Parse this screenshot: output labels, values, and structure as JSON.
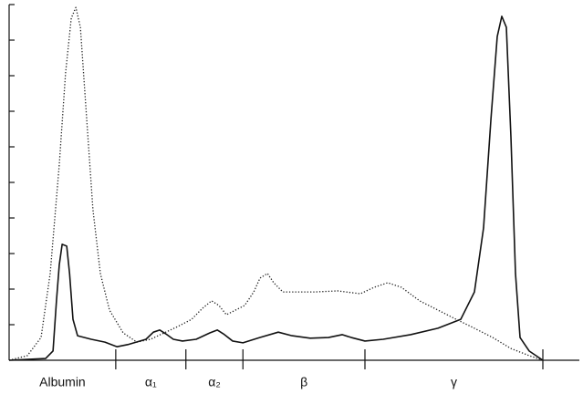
{
  "chart_data": {
    "type": "line",
    "categories": [
      "Albumin",
      "α₁",
      "α₂",
      "β",
      "γ"
    ],
    "xlim": [
      0,
      100
    ],
    "xticks": [
      18.7,
      31.0,
      41.0,
      62.4,
      93.6
    ],
    "ylim": [
      0,
      10
    ],
    "yticks": [
      1,
      2,
      3,
      4,
      5,
      6,
      7,
      8,
      9,
      10
    ],
    "series": [
      {
        "color": "#222222",
        "dash": "dotted",
        "x": [
          0.0,
          3.2,
          5.6,
          7.2,
          8.8,
          9.9,
          10.9,
          11.7,
          12.5,
          13.6,
          14.7,
          16.0,
          17.6,
          20.0,
          22.4,
          24.8,
          27.2,
          29.6,
          32.0,
          33.9,
          35.5,
          36.8,
          38.1,
          39.7,
          41.3,
          42.9,
          44.0,
          45.3,
          46.4,
          48.0,
          50.4,
          53.6,
          57.6,
          61.6,
          64.0,
          66.4,
          68.8,
          72.0,
          75.2,
          78.4,
          81.6,
          84.8,
          88.0,
          91.2,
          93.6
        ],
        "values": [
          0,
          0.13,
          0.64,
          2.44,
          5.51,
          8.08,
          9.62,
          9.92,
          9.36,
          6.79,
          4.23,
          2.44,
          1.41,
          0.77,
          0.51,
          0.59,
          0.77,
          0.95,
          1.15,
          1.46,
          1.67,
          1.54,
          1.28,
          1.41,
          1.54,
          1.92,
          2.31,
          2.44,
          2.18,
          1.92,
          1.92,
          1.92,
          1.95,
          1.87,
          2.05,
          2.18,
          2.05,
          1.67,
          1.41,
          1.15,
          0.9,
          0.64,
          0.33,
          0.13,
          0
        ]
      },
      {
        "color": "#111111",
        "dash": "solid",
        "x": [
          0.0,
          6.4,
          7.7,
          8.3,
          8.8,
          9.3,
          10.1,
          10.6,
          11.2,
          12.0,
          14.4,
          16.8,
          18.9,
          20.8,
          24.0,
          25.3,
          26.4,
          27.5,
          28.8,
          30.4,
          32.8,
          35.2,
          36.5,
          37.6,
          39.2,
          41.0,
          44.0,
          47.2,
          49.6,
          52.8,
          56.0,
          58.4,
          60.0,
          62.4,
          65.6,
          70.4,
          75.2,
          79.2,
          81.6,
          83.2,
          84.5,
          85.6,
          86.4,
          87.2,
          88.0,
          88.8,
          89.6,
          91.2,
          93.6
        ],
        "values": [
          0,
          0.05,
          0.26,
          1.67,
          2.69,
          3.26,
          3.21,
          2.44,
          1.15,
          0.69,
          0.59,
          0.51,
          0.38,
          0.44,
          0.59,
          0.79,
          0.85,
          0.74,
          0.59,
          0.54,
          0.59,
          0.77,
          0.85,
          0.74,
          0.54,
          0.49,
          0.64,
          0.79,
          0.69,
          0.62,
          0.64,
          0.72,
          0.64,
          0.54,
          0.59,
          0.72,
          0.9,
          1.15,
          1.92,
          3.72,
          6.79,
          9.1,
          9.67,
          9.36,
          6.28,
          2.44,
          0.64,
          0.26,
          0
        ]
      }
    ]
  }
}
